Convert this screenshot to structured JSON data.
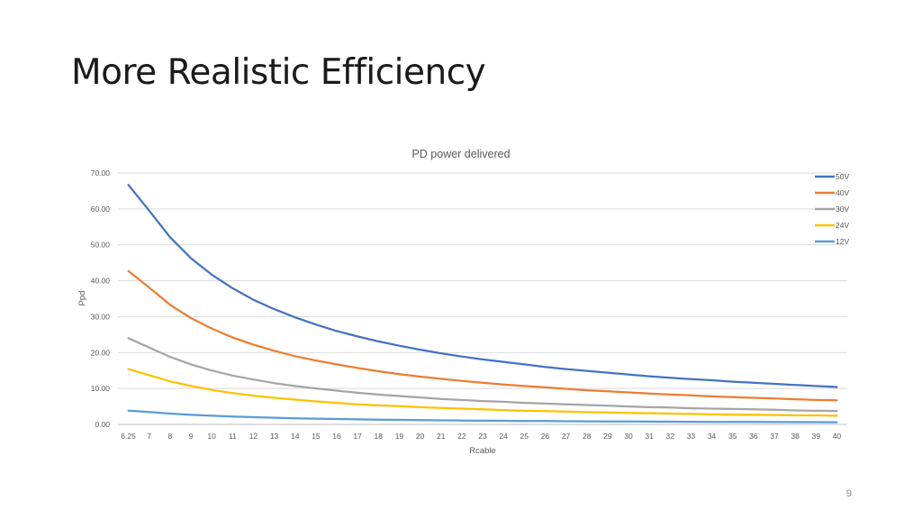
{
  "slide": {
    "title": "More Realistic Efficiency",
    "page_number": "9"
  },
  "chart_data": {
    "type": "line",
    "title": "PD power delivered",
    "xlabel": "Rcable",
    "ylabel": "Ppd",
    "categories": [
      "6.25",
      "7",
      "8",
      "9",
      "10",
      "11",
      "12",
      "13",
      "14",
      "15",
      "16",
      "17",
      "18",
      "19",
      "20",
      "21",
      "22",
      "23",
      "24",
      "25",
      "26",
      "27",
      "28",
      "29",
      "30",
      "31",
      "32",
      "33",
      "34",
      "35",
      "36",
      "37",
      "38",
      "39",
      "40"
    ],
    "ylim": [
      0,
      70
    ],
    "yticks": [
      "0.00",
      "10.00",
      "20.00",
      "30.00",
      "40.00",
      "50.00",
      "60.00",
      "70.00"
    ],
    "grid": true,
    "legend_position": "right",
    "series": [
      {
        "name": "50V",
        "color": "#4472C4",
        "values": [
          66.7,
          59.5,
          52.1,
          46.3,
          41.7,
          37.9,
          34.7,
          32.1,
          29.8,
          27.8,
          26.0,
          24.5,
          23.1,
          21.9,
          20.8,
          19.8,
          18.9,
          18.1,
          17.4,
          16.7,
          16.0,
          15.4,
          14.9,
          14.4,
          13.9,
          13.4,
          13.0,
          12.6,
          12.3,
          11.9,
          11.6,
          11.3,
          11.0,
          10.7,
          10.4
        ]
      },
      {
        "name": "40V",
        "color": "#ED7D31",
        "values": [
          42.7,
          38.1,
          33.3,
          29.6,
          26.7,
          24.2,
          22.2,
          20.5,
          19.0,
          17.8,
          16.7,
          15.7,
          14.8,
          14.0,
          13.3,
          12.7,
          12.1,
          11.6,
          11.1,
          10.7,
          10.3,
          9.9,
          9.5,
          9.2,
          8.9,
          8.6,
          8.3,
          8.1,
          7.8,
          7.6,
          7.4,
          7.2,
          7.0,
          6.8,
          6.7
        ]
      },
      {
        "name": "30V",
        "color": "#A5A5A5",
        "values": [
          24.0,
          21.4,
          18.8,
          16.7,
          15.0,
          13.6,
          12.5,
          11.5,
          10.7,
          10.0,
          9.4,
          8.8,
          8.3,
          7.9,
          7.5,
          7.1,
          6.8,
          6.5,
          6.3,
          6.0,
          5.8,
          5.6,
          5.4,
          5.2,
          5.0,
          4.8,
          4.7,
          4.5,
          4.4,
          4.3,
          4.2,
          4.1,
          3.9,
          3.8,
          3.75
        ]
      },
      {
        "name": "24V",
        "color": "#FFC000",
        "values": [
          15.4,
          13.7,
          12.0,
          10.7,
          9.6,
          8.7,
          8.0,
          7.4,
          6.9,
          6.4,
          6.0,
          5.6,
          5.3,
          5.1,
          4.8,
          4.6,
          4.4,
          4.2,
          4.0,
          3.8,
          3.7,
          3.6,
          3.4,
          3.3,
          3.2,
          3.1,
          3.0,
          2.9,
          2.8,
          2.7,
          2.7,
          2.6,
          2.5,
          2.5,
          2.4
        ]
      },
      {
        "name": "12V",
        "color": "#5B9BD5",
        "values": [
          3.84,
          3.43,
          3.0,
          2.67,
          2.4,
          2.18,
          2.0,
          1.85,
          1.71,
          1.6,
          1.5,
          1.41,
          1.33,
          1.26,
          1.2,
          1.14,
          1.09,
          1.04,
          1.0,
          0.96,
          0.92,
          0.89,
          0.86,
          0.83,
          0.8,
          0.77,
          0.75,
          0.73,
          0.71,
          0.69,
          0.67,
          0.65,
          0.63,
          0.62,
          0.6
        ]
      }
    ]
  }
}
